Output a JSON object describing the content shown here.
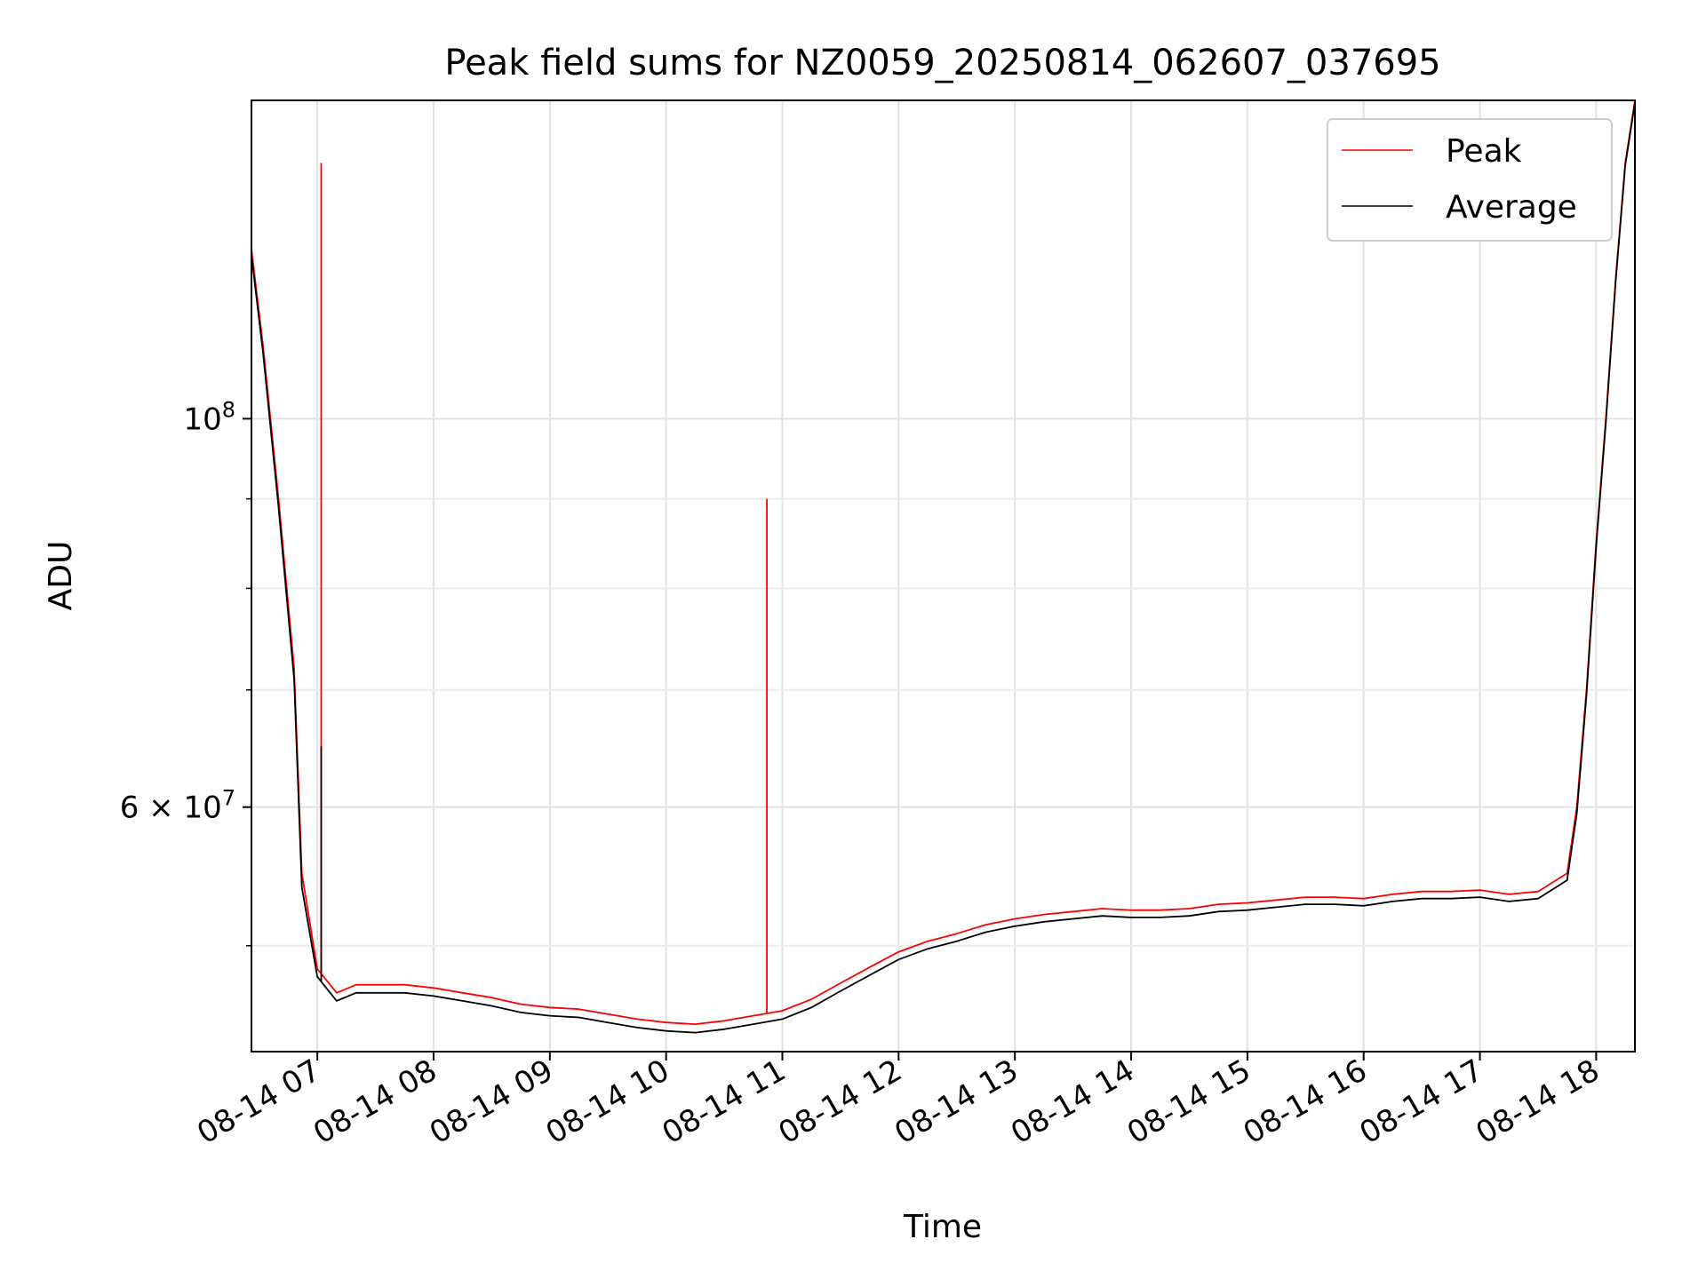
{
  "chart_data": {
    "type": "line",
    "title": "Peak field sums for NZ0059_20250814_062607_037695",
    "xlabel": "Time",
    "ylabel": "ADU",
    "yscale": "log",
    "xlim": [
      "2025-08-14 06:26",
      "2025-08-14 18:20"
    ],
    "ylim": [
      43500000,
      152000000
    ],
    "xticks": [
      "08-14 07",
      "08-14 08",
      "08-14 09",
      "08-14 10",
      "08-14 11",
      "08-14 12",
      "08-14 13",
      "08-14 14",
      "08-14 15",
      "08-14 16",
      "08-14 17",
      "08-14 18"
    ],
    "yticks": [
      {
        "value": 100000000,
        "label": "10^8"
      },
      {
        "value": 60000000,
        "label": "6 × 10^7"
      }
    ],
    "grid": true,
    "legend": "top-right",
    "series": [
      {
        "name": "Peak",
        "color": "#ff0000",
        "x": [
          "06:26",
          "06:32",
          "06:40",
          "06:48",
          "06:52",
          "07:00",
          "07:10",
          "07:20",
          "07:30",
          "07:45",
          "08:00",
          "08:15",
          "08:30",
          "08:45",
          "09:00",
          "09:15",
          "09:30",
          "09:45",
          "10:00",
          "10:15",
          "10:30",
          "10:45",
          "11:00",
          "11:15",
          "11:30",
          "11:45",
          "12:00",
          "12:15",
          "12:30",
          "12:45",
          "13:00",
          "13:15",
          "13:30",
          "13:45",
          "14:00",
          "14:15",
          "14:30",
          "14:45",
          "15:00",
          "15:15",
          "15:30",
          "15:45",
          "16:00",
          "16:15",
          "16:30",
          "16:45",
          "17:00",
          "17:15",
          "17:30",
          "17:45",
          "17:50",
          "17:55",
          "18:00",
          "18:05",
          "18:10",
          "18:15",
          "18:20"
        ],
        "y": [
          125000000,
          110000000,
          90000000,
          72000000,
          55000000,
          48500000,
          47000000,
          47500000,
          47500000,
          47500000,
          47300000,
          47000000,
          46700000,
          46300000,
          46100000,
          46000000,
          45700000,
          45400000,
          45200000,
          45100000,
          45300000,
          45600000,
          45900000,
          46600000,
          47600000,
          48600000,
          49600000,
          50300000,
          50800000,
          51400000,
          51800000,
          52100000,
          52300000,
          52500000,
          52400000,
          52400000,
          52500000,
          52800000,
          52900000,
          53100000,
          53300000,
          53300000,
          53200000,
          53500000,
          53700000,
          53700000,
          53800000,
          53500000,
          53700000,
          55000000,
          60000000,
          70000000,
          85000000,
          100000000,
          120000000,
          140000000,
          152000000
        ]
      },
      {
        "name": "Average",
        "color": "#000000",
        "x": [
          "06:26",
          "06:32",
          "06:40",
          "06:48",
          "06:52",
          "07:00",
          "07:10",
          "07:20",
          "07:30",
          "07:45",
          "08:00",
          "08:15",
          "08:30",
          "08:45",
          "09:00",
          "09:15",
          "09:30",
          "09:45",
          "10:00",
          "10:15",
          "10:30",
          "10:45",
          "11:00",
          "11:15",
          "11:30",
          "11:45",
          "12:00",
          "12:15",
          "12:30",
          "12:45",
          "13:00",
          "13:15",
          "13:30",
          "13:45",
          "14:00",
          "14:15",
          "14:30",
          "14:45",
          "15:00",
          "15:15",
          "15:30",
          "15:45",
          "16:00",
          "16:15",
          "16:30",
          "16:45",
          "17:00",
          "17:15",
          "17:30",
          "17:45",
          "17:50",
          "17:55",
          "18:00",
          "18:05",
          "18:10",
          "18:15",
          "18:20"
        ],
        "y": [
          124000000,
          109000000,
          89000000,
          71000000,
          54000000,
          48000000,
          46500000,
          47000000,
          47000000,
          47000000,
          46800000,
          46500000,
          46200000,
          45800000,
          45600000,
          45500000,
          45200000,
          44900000,
          44700000,
          44600000,
          44800000,
          45100000,
          45400000,
          46100000,
          47100000,
          48100000,
          49100000,
          49800000,
          50300000,
          50900000,
          51300000,
          51600000,
          51800000,
          52000000,
          51900000,
          51900000,
          52000000,
          52300000,
          52400000,
          52600000,
          52800000,
          52800000,
          52700000,
          53000000,
          53200000,
          53200000,
          53300000,
          53000000,
          53200000,
          54500000,
          59500000,
          69500000,
          84500000,
          99500000,
          119500000,
          139500000,
          151500000
        ]
      }
    ],
    "spikes": [
      {
        "series": "Peak",
        "x": "07:02",
        "y": 140000000
      },
      {
        "series": "Average",
        "x": "07:02",
        "y": 65000000
      },
      {
        "series": "Peak",
        "x": "10:52",
        "y": 90000000
      }
    ]
  }
}
